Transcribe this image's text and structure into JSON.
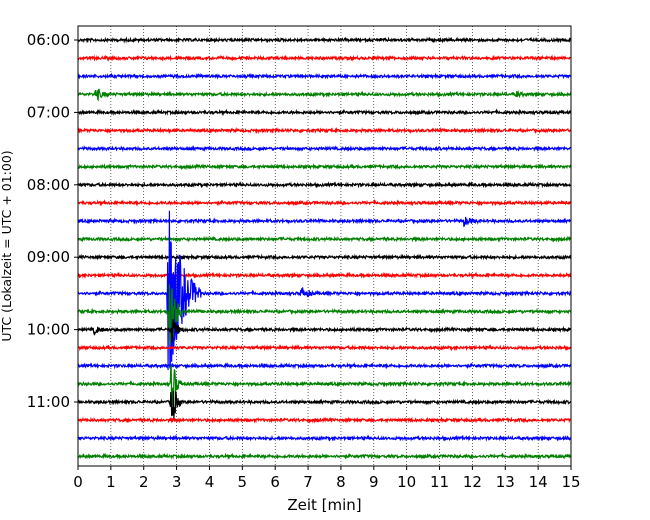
{
  "chart_data": {
    "type": "line",
    "xlabel": "Zeit  [min]",
    "ylabel": "UTC (Lokalzeit = UTC + 01:00)",
    "xlim": [
      0,
      15
    ],
    "x_ticks": [
      0,
      1,
      2,
      3,
      4,
      5,
      6,
      7,
      8,
      9,
      10,
      11,
      12,
      13,
      14,
      15
    ],
    "grid": "vertical dotted",
    "y_start": "06:00",
    "trace_interval_minutes": 15,
    "y_tick_labels": [
      "06:00",
      "07:00",
      "08:00",
      "09:00",
      "10:00",
      "11:00"
    ],
    "trace_colors": [
      "#000000",
      "#ff0000",
      "#0000ff",
      "#008000"
    ],
    "trace_count": 24,
    "events": [
      {
        "trace": 3,
        "time_min": 0.55,
        "amp": 0.5,
        "dur": 0.4
      },
      {
        "trace": 3,
        "time_min": 13.35,
        "amp": 0.2,
        "dur": 0.3
      },
      {
        "trace": 10,
        "time_min": 11.75,
        "amp": 0.35,
        "dur": 0.5
      },
      {
        "trace": 14,
        "time_min": 2.75,
        "amp": 7.5,
        "dur": 1.0
      },
      {
        "trace": 14,
        "time_min": 6.8,
        "amp": 0.45,
        "dur": 0.5
      },
      {
        "trace": 15,
        "time_min": 2.8,
        "amp": 3.5,
        "dur": 0.4
      },
      {
        "trace": 16,
        "time_min": 0.5,
        "amp": 0.3,
        "dur": 0.4
      },
      {
        "trace": 16,
        "time_min": 2.85,
        "amp": 1.0,
        "dur": 0.4
      },
      {
        "trace": 19,
        "time_min": 2.85,
        "amp": 2.5,
        "dur": 0.3
      },
      {
        "trace": 20,
        "time_min": 2.85,
        "amp": 2.2,
        "dur": 0.3
      }
    ]
  }
}
